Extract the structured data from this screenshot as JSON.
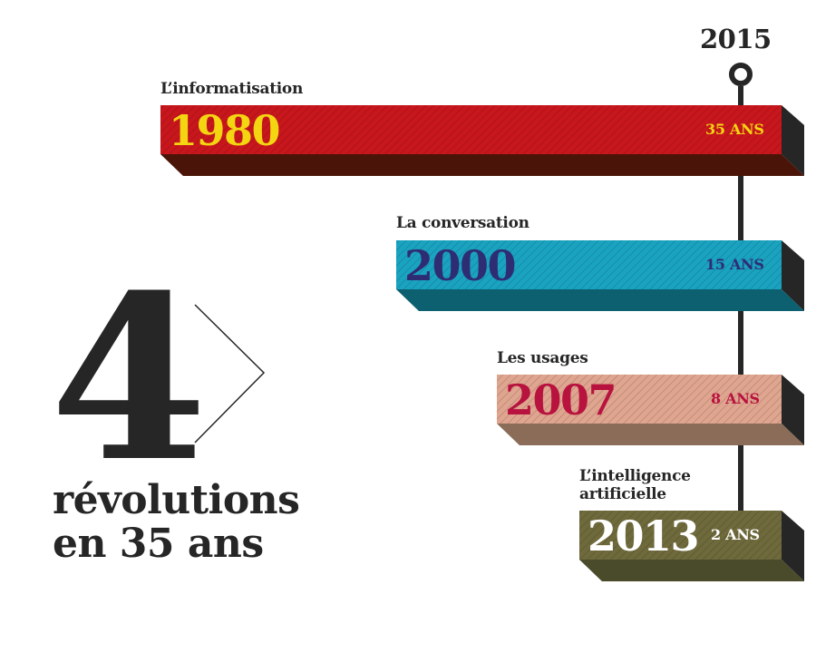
{
  "headline": {
    "number": "4",
    "line1": "révolutions",
    "line2": "en 35 ans"
  },
  "end_year": "2015",
  "timeline": [
    {
      "label": "L’informatisation",
      "year": "1980",
      "duration": "35 ANS",
      "front": "#c8161d",
      "side": "#4a1508",
      "year_color": "#f4d511",
      "dur_color": "#f4d511"
    },
    {
      "label": "La conversation",
      "year": "2000",
      "duration": "15 ANS",
      "front": "#1aa3c0",
      "side": "#0c6070",
      "year_color": "#2e2d74",
      "dur_color": "#2e2d74"
    },
    {
      "label": "Les usages",
      "year": "2007",
      "duration": "8 ANS",
      "front": "#dfa58f",
      "side": "#8a6c58",
      "year_color": "#b8123e",
      "dur_color": "#b8123e"
    },
    {
      "label_line1": "L’intelligence",
      "label_line2": "artificielle",
      "year": "2013",
      "duration": "2 ANS",
      "front": "#6f6a3c",
      "side": "#4a4b2a",
      "year_color": "#ffffff",
      "dur_color": "#ffffff"
    }
  ]
}
